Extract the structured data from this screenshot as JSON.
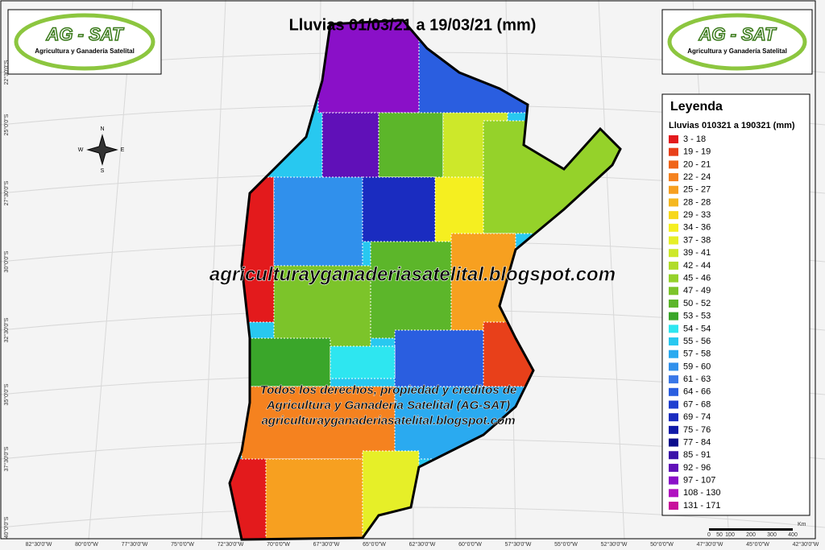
{
  "header": {
    "title": "Lluvias 01/03/21 a 19/03/21 (mm)"
  },
  "logos": [
    {
      "name": "AG - SAT",
      "subtitle": "Agricultura y Ganadería Satelital"
    },
    {
      "name": "AG - SAT",
      "subtitle": "Agricultura y Ganadería Satelital"
    }
  ],
  "legend": {
    "title": "Leyenda",
    "subtitle": "Lluvias 010321 a 190321 (mm)",
    "items": [
      {
        "label": "3 - 18",
        "color": "#e31a1c"
      },
      {
        "label": "19 - 19",
        "color": "#e8401a"
      },
      {
        "label": "20 - 21",
        "color": "#f06418"
      },
      {
        "label": "22 - 24",
        "color": "#f5821f"
      },
      {
        "label": "25 - 27",
        "color": "#f7a020"
      },
      {
        "label": "28 - 28",
        "color": "#f5b820"
      },
      {
        "label": "29 - 33",
        "color": "#f7d81c"
      },
      {
        "label": "34 - 36",
        "color": "#f5ef20"
      },
      {
        "label": "37 - 38",
        "color": "#e6ef28"
      },
      {
        "label": "39 - 41",
        "color": "#cde82a"
      },
      {
        "label": "42 - 44",
        "color": "#b0dc2a"
      },
      {
        "label": "45 - 46",
        "color": "#95d22a"
      },
      {
        "label": "47 - 49",
        "color": "#7cc42a"
      },
      {
        "label": "50 - 52",
        "color": "#5cb62a"
      },
      {
        "label": "53 - 53",
        "color": "#3aa62a"
      },
      {
        "label": "54 - 54",
        "color": "#2ee6f0"
      },
      {
        "label": "55 - 56",
        "color": "#28c8f0"
      },
      {
        "label": "57 - 58",
        "color": "#2aaaf0"
      },
      {
        "label": "59 - 60",
        "color": "#3090ec"
      },
      {
        "label": "61 - 63",
        "color": "#3a78e8"
      },
      {
        "label": "64 - 66",
        "color": "#2a5ee0"
      },
      {
        "label": "67 - 68",
        "color": "#2040d0"
      },
      {
        "label": "69 - 74",
        "color": "#1a2cc0"
      },
      {
        "label": "75 - 76",
        "color": "#101aa8"
      },
      {
        "label": "77 - 84",
        "color": "#0a0c8c"
      },
      {
        "label": "85 - 91",
        "color": "#3a12a8"
      },
      {
        "label": "92 - 96",
        "color": "#6010b8"
      },
      {
        "label": "97 - 107",
        "color": "#8a10c8"
      },
      {
        "label": "108 - 130",
        "color": "#b010c0"
      },
      {
        "label": "131 - 171",
        "color": "#c8109c"
      }
    ]
  },
  "watermark": "agriculturayganaderiasatelital.blogspot.com",
  "credits": [
    "Todos los derechos, propiedad y creditos de",
    "Agricultura y Ganaderia Satelital (AG-SAT)",
    "agriculturayganaderiasatelital.blogspot.com"
  ],
  "grid": {
    "lat_labels": [
      "22°30'0\"S",
      "25°0'0\"S",
      "27°30'0\"S",
      "30°0'0\"S",
      "32°30'0\"S",
      "35°0'0\"S",
      "37°30'0\"S",
      "40°0'0\"S"
    ],
    "lon_labels": [
      "82°30'0\"W",
      "80°0'0\"W",
      "77°30'0\"W",
      "75°0'0\"W",
      "72°30'0\"W",
      "70°0'0\"W",
      "67°30'0\"W",
      "65°0'0\"W",
      "62°30'0\"W",
      "60°0'0\"W",
      "57°30'0\"W",
      "55°0'0\"W",
      "52°30'0\"W",
      "50°0'0\"W",
      "47°30'0\"W",
      "45°0'0\"W",
      "42°30'0\"W"
    ]
  },
  "compass": {
    "n": "N",
    "s": "S",
    "e": "E",
    "w": "W"
  },
  "scale_bar": {
    "labels": [
      "0",
      "50",
      "100",
      "200",
      "300",
      "400"
    ],
    "unit": "Km"
  }
}
